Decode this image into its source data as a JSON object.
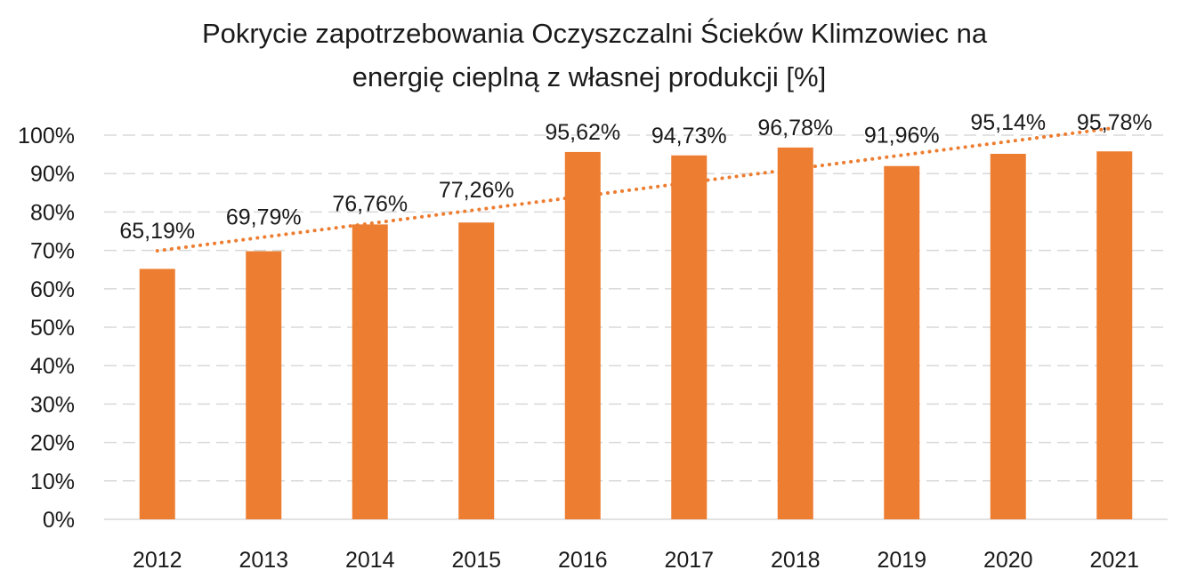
{
  "chart_data": {
    "type": "bar",
    "title_lines": [
      "Pokrycie zapotrzebowania Oczyszczalni Ścieków Klimzowiec na",
      "energię cieplną z własnej produkcji [%]"
    ],
    "categories": [
      "2012",
      "2013",
      "2014",
      "2015",
      "2016",
      "2017",
      "2018",
      "2019",
      "2020",
      "2021"
    ],
    "values": [
      65.19,
      69.79,
      76.76,
      77.26,
      95.62,
      94.73,
      96.78,
      91.96,
      95.14,
      95.78
    ],
    "data_labels": [
      "65,19%",
      "69,79%",
      "76,76%",
      "77,26%",
      "95,62%",
      "94,73%",
      "96,78%",
      "91,96%",
      "95,14%",
      "95,78%"
    ],
    "ylim": [
      0,
      100
    ],
    "y_ticks": [
      "0%",
      "10%",
      "20%",
      "30%",
      "40%",
      "50%",
      "60%",
      "70%",
      "80%",
      "90%",
      "100%"
    ],
    "trendline": {
      "type": "linear",
      "style": "dotted"
    },
    "grid": true,
    "legend": "none",
    "colors": {
      "bar": "#ED7D31",
      "trendline": "#ED7D31",
      "grid": "#D9D9D9",
      "axis": "#D9D9D9"
    }
  }
}
